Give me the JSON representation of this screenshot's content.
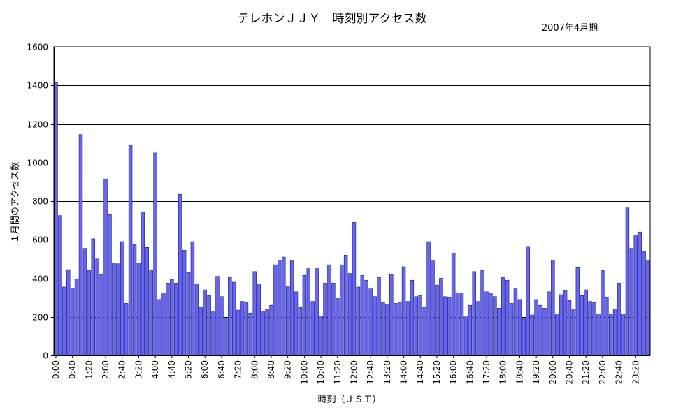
{
  "chart_data": {
    "type": "bar",
    "title": "テレホンＪＪＹ　時刻別アクセス数",
    "subtitle": "2007年4月期",
    "xlabel": "時刻（ＪＳＴ）",
    "ylabel": "１月間のアクセス数",
    "ylim": [
      0,
      1600
    ],
    "yticks": [
      0,
      200,
      400,
      600,
      800,
      1000,
      1200,
      1400,
      1600
    ],
    "grid": true,
    "legend": "none",
    "bar_color": "#6666ee",
    "bar_edge_color": "#1a1a80",
    "x_tick_labels": [
      "0:00",
      "0:40",
      "1:20",
      "2:00",
      "2:40",
      "3:20",
      "4:00",
      "4:40",
      "5:20",
      "6:00",
      "6:40",
      "7:20",
      "8:00",
      "8:40",
      "9:20",
      "10:00",
      "10:40",
      "11:20",
      "12:00",
      "12:40",
      "13:20",
      "14:00",
      "14:40",
      "15:20",
      "16:00",
      "16:40",
      "17:20",
      "18:00",
      "18:40",
      "19:20",
      "20:00",
      "20:40",
      "21:20",
      "22:00",
      "22:40",
      "23:20"
    ],
    "values": [
      1415,
      725,
      355,
      445,
      350,
      395,
      1145,
      555,
      440,
      605,
      500,
      420,
      915,
      730,
      480,
      475,
      590,
      270,
      1090,
      575,
      480,
      745,
      560,
      440,
      1050,
      290,
      320,
      375,
      395,
      375,
      835,
      545,
      430,
      590,
      370,
      250,
      340,
      310,
      230,
      410,
      305,
      195,
      405,
      380,
      235,
      280,
      275,
      220,
      435,
      370,
      230,
      240,
      260,
      470,
      495,
      510,
      360,
      495,
      330,
      250,
      415,
      450,
      280,
      450,
      205,
      375,
      470,
      375,
      295,
      470,
      520,
      425,
      690,
      355,
      415,
      390,
      345,
      305,
      405,
      275,
      265,
      420,
      270,
      275,
      460,
      280,
      390,
      305,
      310,
      250,
      590,
      490,
      365,
      400,
      305,
      300,
      530,
      325,
      320,
      200,
      260,
      435,
      280,
      440,
      330,
      320,
      305,
      245,
      405,
      390,
      270,
      345,
      290,
      195,
      565,
      210,
      290,
      260,
      245,
      330,
      495,
      215,
      315,
      335,
      285,
      240,
      455,
      310,
      340,
      280,
      275,
      215,
      440,
      300,
      215,
      240,
      375,
      215,
      765,
      555,
      625,
      640,
      540,
      495
    ]
  }
}
